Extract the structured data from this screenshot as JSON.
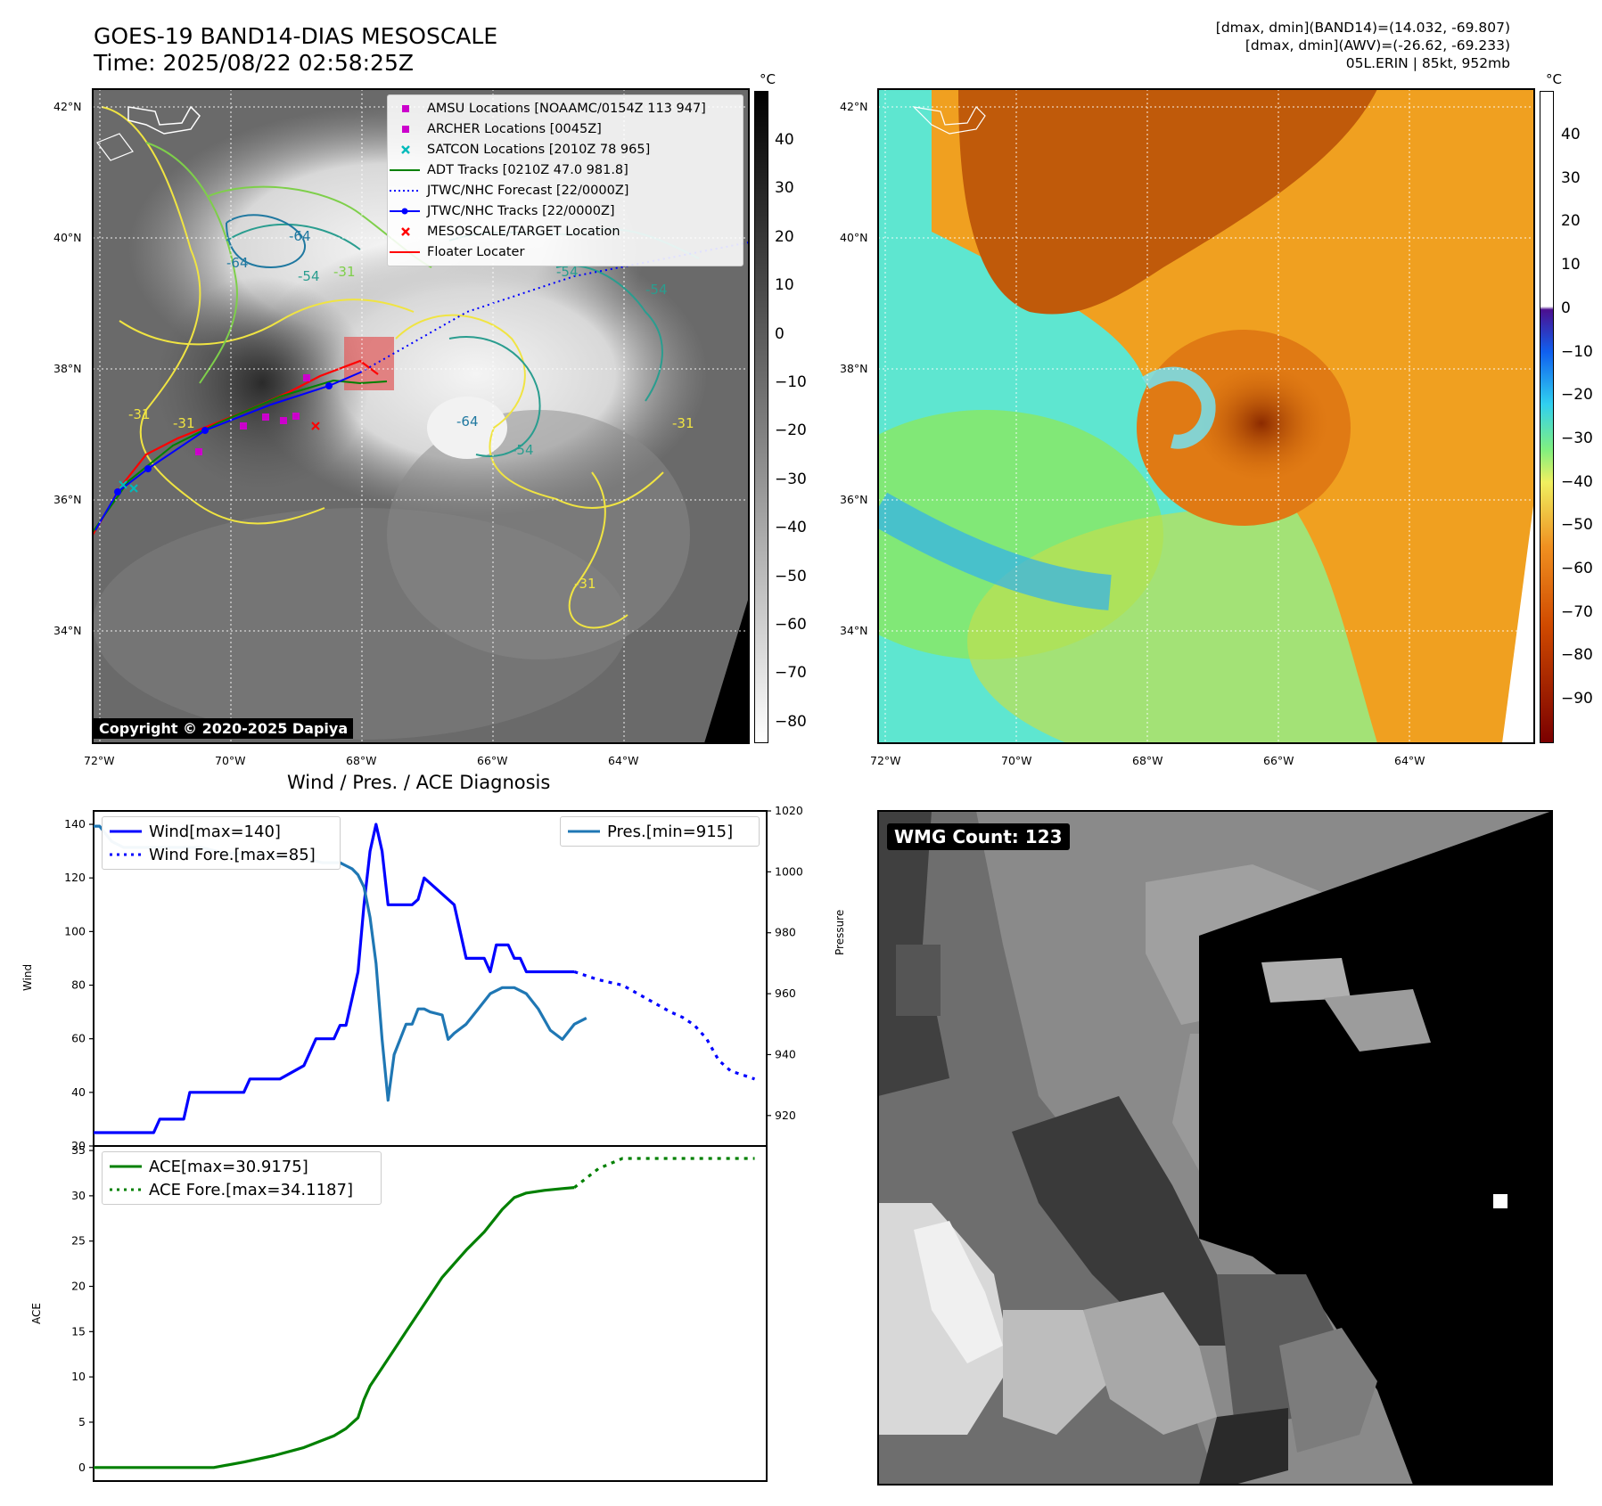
{
  "header": {
    "title_line1": "GOES-19 BAND14-DIAS MESOSCALE",
    "title_line2": "Time: 2025/08/22 02:58:25Z",
    "meta_line1": "[dmax, dmin](BAND14)=(14.032, -69.807)",
    "meta_line2": "[dmax, dmin](AWV)=(-26.62, -69.233)",
    "meta_line3": "05L.ERIN | 85kt, 952mb"
  },
  "map_left": {
    "copyright": "Copyright © 2020-2025 Dapiya",
    "lat_labels": [
      "42°N",
      "40°N",
      "38°N",
      "36°N",
      "34°N"
    ],
    "lon_labels": [
      "72°W",
      "70°W",
      "68°W",
      "66°W",
      "64°W"
    ],
    "contour_labels": [
      "-64",
      "-64",
      "-54",
      "-54",
      "-54",
      "-31",
      "-31",
      "-31",
      "-31",
      "-54",
      "-64",
      "-31"
    ],
    "legend": [
      {
        "label": "AMSU Locations [NOAAMC/0154Z 113 947]",
        "color": "#cc00cc",
        "icon": "square-marker-icon"
      },
      {
        "label": "ARCHER Locations [0045Z]",
        "color": "#cc00cc",
        "icon": "square-marker-icon"
      },
      {
        "label": "SATCON Locations [2010Z 78 965]",
        "color": "#00bbbb",
        "icon": "x-marker-icon"
      },
      {
        "label": "ADT Tracks [0210Z 47.0 981.8]",
        "color": "#008000",
        "icon": "line-icon"
      },
      {
        "label": "JTWC/NHC Forecast [22/0000Z]",
        "color": "#0000ff",
        "icon": "dotted-line-icon"
      },
      {
        "label": "JTWC/NHC Tracks [22/0000Z]",
        "color": "#0000ff",
        "icon": "line-dot-icon"
      },
      {
        "label": "MESOSCALE/TARGET Location",
        "color": "#ff0000",
        "icon": "x-marker-icon"
      },
      {
        "label": "Floater Locater",
        "color": "#ff0000",
        "icon": "line-icon"
      }
    ],
    "colorbar": {
      "unit": "°C",
      "ticks": [
        "40",
        "30",
        "20",
        "10",
        "0",
        "−10",
        "−20",
        "−30",
        "−40",
        "−50",
        "−60",
        "−70",
        "−80"
      ]
    }
  },
  "map_right": {
    "lat_labels": [
      "42°N",
      "40°N",
      "38°N",
      "36°N",
      "34°N"
    ],
    "lon_labels": [
      "72°W",
      "70°W",
      "68°W",
      "66°W",
      "64°W"
    ],
    "colorbar": {
      "unit": "°C",
      "ticks": [
        "40",
        "30",
        "20",
        "10",
        "0",
        "−10",
        "−20",
        "−30",
        "−40",
        "−50",
        "−60",
        "−70",
        "−80",
        "−90"
      ]
    }
  },
  "wmg": {
    "label": "WMG Count: 123"
  },
  "chart_data": [
    {
      "type": "line",
      "title": "Wind / Pres. / ACE Diagnosis",
      "ylabel": "Wind",
      "y2label": "Pressure",
      "ylim": [
        20,
        145
      ],
      "y2lim": [
        910,
        1020
      ],
      "yticks": [
        "20",
        "40",
        "60",
        "80",
        "100",
        "120",
        "140"
      ],
      "y2ticks": [
        "920",
        "940",
        "960",
        "980",
        "1000",
        "1020"
      ],
      "xlim": [
        0,
        112
      ],
      "legend_left": [
        "Wind[max=140]",
        "Wind Fore.[max=85]"
      ],
      "legend_right": [
        "Pres.[min=915]"
      ],
      "series": [
        {
          "name": "Wind",
          "axis": "left",
          "style": "solid",
          "color": "#0000ff",
          "x": [
            0,
            5,
            10,
            11,
            15,
            16,
            20,
            21,
            25,
            26,
            30,
            31,
            35,
            36,
            37,
            40,
            41,
            42,
            43,
            44,
            45,
            46,
            47,
            48,
            49,
            50,
            52,
            53,
            54,
            55,
            60,
            61,
            62,
            63,
            64,
            65,
            66,
            67,
            68,
            69,
            70,
            71,
            72,
            73,
            74,
            75,
            76,
            78,
            79,
            80
          ],
          "y": [
            25,
            25,
            25,
            30,
            30,
            40,
            40,
            40,
            40,
            45,
            45,
            45,
            50,
            55,
            60,
            60,
            65,
            65,
            75,
            85,
            110,
            130,
            140,
            130,
            110,
            110,
            110,
            110,
            112,
            120,
            110,
            100,
            90,
            90,
            90,
            90,
            85,
            95,
            95,
            95,
            90,
            90,
            85,
            85,
            85,
            85,
            85,
            85,
            85,
            85
          ]
        },
        {
          "name": "Wind Fore.",
          "axis": "left",
          "style": "dotted",
          "color": "#0000ff",
          "x": [
            80,
            84,
            88,
            92,
            96,
            98,
            100,
            102,
            104,
            106,
            110
          ],
          "y": [
            85,
            82,
            80,
            75,
            70,
            68,
            65,
            60,
            52,
            48,
            45
          ]
        },
        {
          "name": "Pres.",
          "axis": "right",
          "style": "solid",
          "color": "#1f77b4",
          "x": [
            0,
            1,
            3,
            5,
            10,
            15,
            18,
            20,
            22,
            25,
            28,
            30,
            32,
            35,
            36,
            38,
            40,
            41,
            42,
            43,
            44,
            45,
            46,
            47,
            48,
            49,
            50,
            52,
            53,
            54,
            55,
            56,
            58,
            59,
            60,
            62,
            64,
            66,
            68,
            70,
            72,
            74,
            76,
            78,
            80,
            82
          ],
          "y": [
            1015,
            1015,
            1010,
            1008,
            1008,
            1008,
            1008,
            1007,
            1006,
            1006,
            1006,
            1005,
            1005,
            1005,
            1004,
            1003,
            1003,
            1003,
            1002,
            1001,
            999,
            995,
            985,
            970,
            945,
            925,
            940,
            950,
            950,
            955,
            955,
            954,
            953,
            945,
            947,
            950,
            955,
            960,
            962,
            962,
            960,
            955,
            948,
            945,
            950,
            952
          ]
        }
      ]
    },
    {
      "type": "line",
      "ylabel": "ACE",
      "ylim": [
        -1.5,
        35.5
      ],
      "yticks": [
        "0",
        "5",
        "10",
        "15",
        "20",
        "25",
        "30",
        "35"
      ],
      "xlim": [
        0,
        112
      ],
      "legend": [
        "ACE[max=30.9175]",
        "ACE Fore.[max=34.1187]"
      ],
      "series": [
        {
          "name": "ACE",
          "style": "solid",
          "color": "#008000",
          "x": [
            0,
            5,
            10,
            15,
            20,
            25,
            30,
            35,
            40,
            42,
            44,
            45,
            46,
            48,
            50,
            52,
            55,
            58,
            60,
            62,
            65,
            68,
            70,
            72,
            75,
            78,
            80
          ],
          "y": [
            0,
            0,
            0,
            0,
            0,
            0.6,
            1.3,
            2.2,
            3.5,
            4.3,
            5.5,
            7.5,
            9,
            11,
            13,
            15,
            18,
            21,
            22.5,
            24,
            26,
            28.5,
            29.8,
            30.3,
            30.6,
            30.8,
            30.9175
          ]
        },
        {
          "name": "ACE Fore.",
          "style": "dotted",
          "color": "#008000",
          "x": [
            80,
            84,
            88,
            92,
            96,
            100,
            104,
            110
          ],
          "y": [
            30.9175,
            33,
            34.1187,
            34.1187,
            34.1187,
            34.1187,
            34.1187,
            34.1187
          ]
        }
      ]
    }
  ]
}
